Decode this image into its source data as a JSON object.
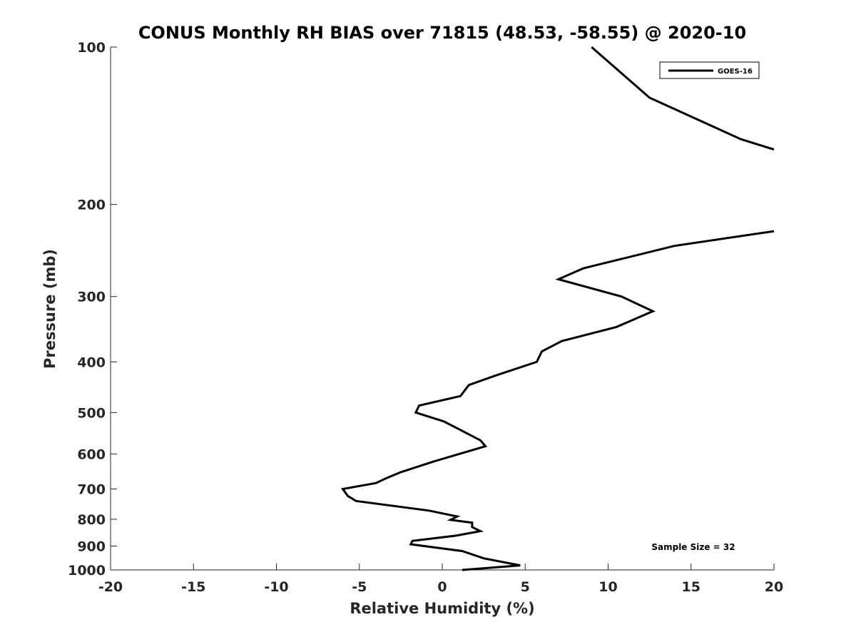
{
  "chart_data": {
    "type": "line",
    "title": "CONUS Monthly RH BIAS over 71815 (48.53, -58.55) @ 2020-10",
    "xlabel": "Relative Humidity (%)",
    "ylabel": "Pressure (mb)",
    "xlim": [
      -20,
      20
    ],
    "ylim": [
      100,
      1000
    ],
    "y_scale": "log",
    "y_reversed": true,
    "grid": false,
    "legend_position": "top-right",
    "x_ticks": [
      "-20",
      "-15",
      "-10",
      "-5",
      "0",
      "5",
      "10",
      "15",
      "20"
    ],
    "y_ticks": [
      "100",
      "200",
      "300",
      "400",
      "500",
      "600",
      "700",
      "800",
      "900",
      "1000"
    ],
    "annotation": "Sample Size = 32",
    "series": [
      {
        "name": "GOES-16",
        "color": "#000000",
        "segments": [
          [
            {
              "x": 9.0,
              "y": 100
            },
            {
              "x": 12.5,
              "y": 125
            },
            {
              "x": 18.0,
              "y": 150
            },
            {
              "x": 20.0,
              "y": 157
            }
          ],
          [
            {
              "x": 20.0,
              "y": 225
            },
            {
              "x": 14.0,
              "y": 240
            },
            {
              "x": 8.5,
              "y": 265
            },
            {
              "x": 7.0,
              "y": 278
            },
            {
              "x": 10.8,
              "y": 300
            },
            {
              "x": 12.7,
              "y": 320
            },
            {
              "x": 10.5,
              "y": 343
            },
            {
              "x": 7.2,
              "y": 365
            },
            {
              "x": 6.0,
              "y": 382
            },
            {
              "x": 5.7,
              "y": 400
            },
            {
              "x": 3.2,
              "y": 425
            },
            {
              "x": 1.6,
              "y": 443
            },
            {
              "x": 1.1,
              "y": 465
            },
            {
              "x": -1.4,
              "y": 485
            },
            {
              "x": -1.6,
              "y": 500
            },
            {
              "x": 0.1,
              "y": 520
            },
            {
              "x": 2.3,
              "y": 565
            },
            {
              "x": 2.6,
              "y": 580
            },
            {
              "x": -0.5,
              "y": 620
            },
            {
              "x": -2.5,
              "y": 650
            },
            {
              "x": -3.4,
              "y": 668
            },
            {
              "x": -4.0,
              "y": 682
            },
            {
              "x": -6.0,
              "y": 700
            },
            {
              "x": -5.7,
              "y": 722
            },
            {
              "x": -5.2,
              "y": 738
            },
            {
              "x": -0.8,
              "y": 770
            },
            {
              "x": 0.9,
              "y": 790
            },
            {
              "x": 0.5,
              "y": 802
            },
            {
              "x": 1.8,
              "y": 812
            },
            {
              "x": 1.8,
              "y": 828
            },
            {
              "x": 2.3,
              "y": 843
            },
            {
              "x": 0.8,
              "y": 860
            },
            {
              "x": -1.8,
              "y": 880
            },
            {
              "x": -1.9,
              "y": 893
            },
            {
              "x": 1.2,
              "y": 920
            },
            {
              "x": 2.5,
              "y": 950
            },
            {
              "x": 4.7,
              "y": 980
            },
            {
              "x": 1.2,
              "y": 1000
            }
          ]
        ]
      }
    ]
  }
}
